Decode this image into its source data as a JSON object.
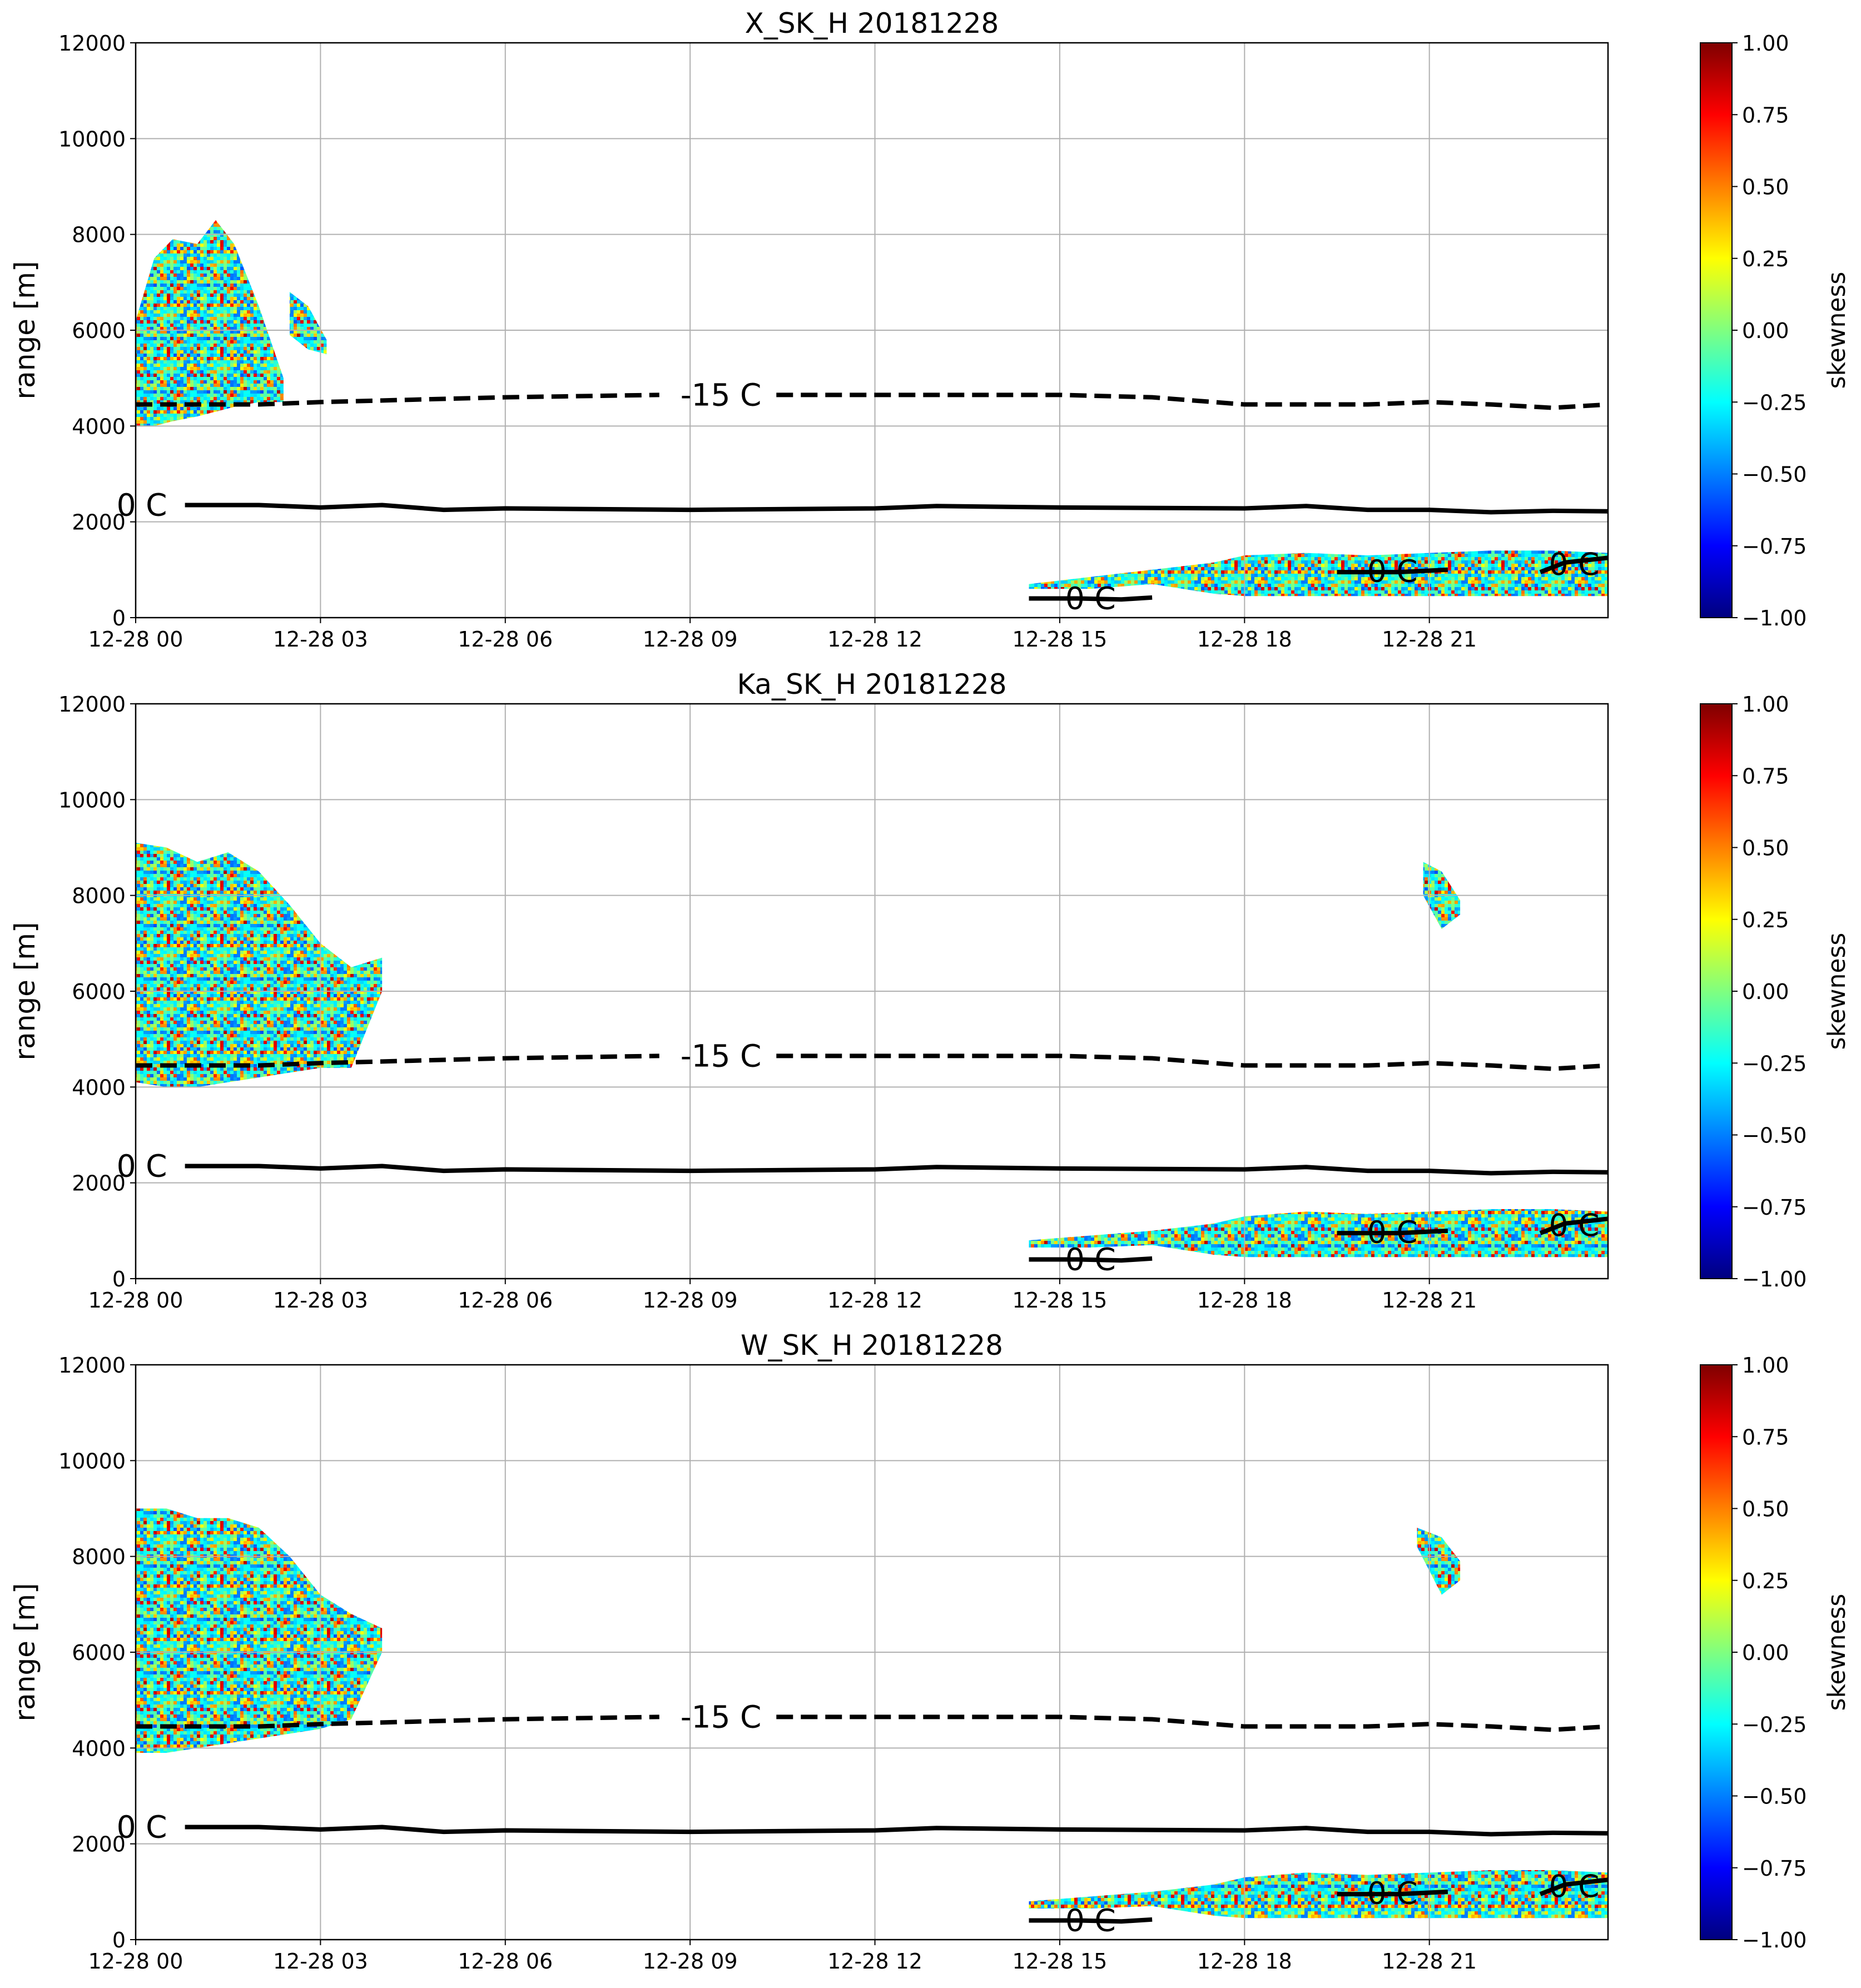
{
  "chart_data": [
    {
      "type": "heatmap",
      "title": "X_SK_H 20181228",
      "ylabel": "range [m]",
      "xlim": [
        0,
        23.9
      ],
      "xticks": [
        {
          "value": 0,
          "label": "12-28 00"
        },
        {
          "value": 3,
          "label": "12-28 03"
        },
        {
          "value": 6,
          "label": "12-28 06"
        },
        {
          "value": 9,
          "label": "12-28 09"
        },
        {
          "value": 12,
          "label": "12-28 12"
        },
        {
          "value": 15,
          "label": "12-28 15"
        },
        {
          "value": 18,
          "label": "12-28 18"
        },
        {
          "value": 21,
          "label": "12-28 21"
        }
      ],
      "ylim": [
        0,
        12000
      ],
      "yticks": [
        0,
        2000,
        4000,
        6000,
        8000,
        10000,
        12000
      ],
      "grid": true,
      "colorbar": {
        "label": "skewness",
        "colormap": "jet",
        "clim": [
          -1,
          1
        ],
        "ticks": [
          {
            "value": 1,
            "label": "1.00"
          },
          {
            "value": 0.75,
            "label": "0.75"
          },
          {
            "value": 0.5,
            "label": "0.50"
          },
          {
            "value": 0.25,
            "label": "0.25"
          },
          {
            "value": 0,
            "label": "0.00"
          },
          {
            "value": -0.25,
            "label": "−0.25"
          },
          {
            "value": -0.5,
            "label": "−0.50"
          },
          {
            "value": -0.75,
            "label": "−0.75"
          },
          {
            "value": -1,
            "label": "−1.00"
          }
        ]
      },
      "echo": [
        {
          "x": [
            0,
            0.3,
            0.6,
            1,
            1.3,
            1.6,
            2,
            2.4
          ],
          "top": [
            6200,
            7500,
            7900,
            7800,
            8300,
            7800,
            6500,
            5000
          ],
          "bottom": [
            4000,
            4000,
            4100,
            4200,
            4300,
            4400,
            4500,
            4500
          ]
        },
        {
          "x": [
            2.5,
            2.8,
            3.1
          ],
          "top": [
            6800,
            6500,
            5800
          ],
          "bottom": [
            5900,
            5600,
            5500
          ]
        },
        {
          "x": [
            14.5,
            15.5,
            16.5,
            17.5,
            18,
            19,
            20,
            21,
            22,
            23,
            23.9
          ],
          "top": [
            700,
            850,
            1000,
            1150,
            1300,
            1350,
            1300,
            1350,
            1400,
            1400,
            1350
          ],
          "bottom": [
            600,
            600,
            700,
            500,
            450,
            450,
            450,
            450,
            450,
            450,
            450
          ]
        }
      ],
      "contours": [
        {
          "label": "-15 C",
          "style": "dashed",
          "x": [
            0,
            2,
            3,
            4.5,
            6,
            8.5,
            9.5,
            10.4,
            12,
            15,
            16.5,
            18,
            20,
            21,
            22,
            23,
            23.9
          ],
          "values": [
            4450,
            4450,
            4500,
            4550,
            4600,
            4650,
            null,
            4650,
            4650,
            4650,
            4600,
            4450,
            4450,
            4500,
            4450,
            4380,
            4450
          ]
        },
        {
          "label": "0 C",
          "style": "solid",
          "x": [
            0.1,
            0.8,
            2,
            3,
            4,
            5,
            6,
            9,
            12,
            13,
            15,
            18,
            19,
            20,
            21,
            22,
            23,
            23.9
          ],
          "values": [
            null,
            2350,
            2350,
            2300,
            2350,
            2250,
            2280,
            2250,
            2280,
            2330,
            2300,
            2280,
            2330,
            2250,
            2250,
            2200,
            2230,
            2220
          ]
        },
        {
          "label": "0 C",
          "style": "solid",
          "x": [
            14.5,
            15.3,
            16,
            16.5
          ],
          "values": [
            400,
            400,
            380,
            420
          ]
        },
        {
          "label": "0 C",
          "style": "solid",
          "x": [
            19.5,
            20.5,
            21.3
          ],
          "values": [
            950,
            950,
            1000
          ]
        },
        {
          "label": "0 C",
          "style": "solid",
          "x": [
            22.8,
            23.2,
            23.9
          ],
          "values": [
            950,
            1150,
            1250
          ]
        }
      ]
    },
    {
      "type": "heatmap",
      "title": "Ka_SK_H 20181228",
      "ylabel": "range [m]",
      "xlim": [
        0,
        23.9
      ],
      "xticks": [
        {
          "value": 0,
          "label": "12-28 00"
        },
        {
          "value": 3,
          "label": "12-28 03"
        },
        {
          "value": 6,
          "label": "12-28 06"
        },
        {
          "value": 9,
          "label": "12-28 09"
        },
        {
          "value": 12,
          "label": "12-28 12"
        },
        {
          "value": 15,
          "label": "12-28 15"
        },
        {
          "value": 18,
          "label": "12-28 18"
        },
        {
          "value": 21,
          "label": "12-28 21"
        }
      ],
      "ylim": [
        0,
        12000
      ],
      "yticks": [
        0,
        2000,
        4000,
        6000,
        8000,
        10000,
        12000
      ],
      "grid": true,
      "colorbar": {
        "label": "skewness",
        "colormap": "jet",
        "clim": [
          -1,
          1
        ],
        "ticks": [
          {
            "value": 1,
            "label": "1.00"
          },
          {
            "value": 0.75,
            "label": "0.75"
          },
          {
            "value": 0.5,
            "label": "0.50"
          },
          {
            "value": 0.25,
            "label": "0.25"
          },
          {
            "value": 0,
            "label": "0.00"
          },
          {
            "value": -0.25,
            "label": "−0.25"
          },
          {
            "value": -0.5,
            "label": "−0.50"
          },
          {
            "value": -0.75,
            "label": "−0.75"
          },
          {
            "value": -1,
            "label": "−1.00"
          }
        ]
      },
      "echo": [
        {
          "x": [
            0,
            0.5,
            1,
            1.5,
            2,
            2.5,
            3,
            3.5,
            4
          ],
          "top": [
            9100,
            9000,
            8700,
            8900,
            8500,
            7800,
            7000,
            6500,
            6700
          ],
          "bottom": [
            4100,
            4000,
            4000,
            4100,
            4200,
            4300,
            4400,
            4400,
            6000
          ]
        },
        {
          "x": [
            20.9,
            21.2,
            21.5
          ],
          "top": [
            8700,
            8500,
            7900
          ],
          "bottom": [
            8000,
            7300,
            7600
          ]
        },
        {
          "x": [
            14.5,
            15.5,
            16.5,
            17.5,
            18,
            19,
            20,
            21,
            22,
            23,
            23.9
          ],
          "top": [
            800,
            900,
            1000,
            1150,
            1300,
            1400,
            1350,
            1400,
            1450,
            1450,
            1400
          ],
          "bottom": [
            650,
            650,
            700,
            500,
            450,
            450,
            450,
            450,
            450,
            450,
            450
          ]
        }
      ],
      "contours": [
        {
          "label": "-15 C",
          "style": "dashed",
          "x": [
            0,
            2,
            3,
            4.5,
            6,
            8.5,
            9.5,
            10.4,
            12,
            15,
            16.5,
            18,
            20,
            21,
            22,
            23,
            23.9
          ],
          "values": [
            4450,
            4450,
            4500,
            4550,
            4600,
            4650,
            null,
            4650,
            4650,
            4650,
            4600,
            4450,
            4450,
            4500,
            4450,
            4380,
            4450
          ]
        },
        {
          "label": "0 C",
          "style": "solid",
          "x": [
            0.1,
            0.8,
            2,
            3,
            4,
            5,
            6,
            9,
            12,
            13,
            15,
            18,
            19,
            20,
            21,
            22,
            23,
            23.9
          ],
          "values": [
            null,
            2350,
            2350,
            2300,
            2350,
            2250,
            2280,
            2250,
            2280,
            2330,
            2300,
            2280,
            2330,
            2250,
            2250,
            2200,
            2230,
            2220
          ]
        },
        {
          "label": "0 C",
          "style": "solid",
          "x": [
            14.5,
            15.3,
            16,
            16.5
          ],
          "values": [
            400,
            400,
            380,
            420
          ]
        },
        {
          "label": "0 C",
          "style": "solid",
          "x": [
            19.5,
            20.5,
            21.3
          ],
          "values": [
            950,
            950,
            1000
          ]
        },
        {
          "label": "0 C",
          "style": "solid",
          "x": [
            22.8,
            23.2,
            23.9
          ],
          "values": [
            950,
            1150,
            1250
          ]
        }
      ]
    },
    {
      "type": "heatmap",
      "title": "W_SK_H 20181228",
      "ylabel": "range [m]",
      "xlim": [
        0,
        23.9
      ],
      "xticks": [
        {
          "value": 0,
          "label": "12-28 00"
        },
        {
          "value": 3,
          "label": "12-28 03"
        },
        {
          "value": 6,
          "label": "12-28 06"
        },
        {
          "value": 9,
          "label": "12-28 09"
        },
        {
          "value": 12,
          "label": "12-28 12"
        },
        {
          "value": 15,
          "label": "12-28 15"
        },
        {
          "value": 18,
          "label": "12-28 18"
        },
        {
          "value": 21,
          "label": "12-28 21"
        }
      ],
      "ylim": [
        0,
        12000
      ],
      "yticks": [
        0,
        2000,
        4000,
        6000,
        8000,
        10000,
        12000
      ],
      "grid": true,
      "colorbar": {
        "label": "skewness",
        "colormap": "jet",
        "clim": [
          -1,
          1
        ],
        "ticks": [
          {
            "value": 1,
            "label": "1.00"
          },
          {
            "value": 0.75,
            "label": "0.75"
          },
          {
            "value": 0.5,
            "label": "0.50"
          },
          {
            "value": 0.25,
            "label": "0.25"
          },
          {
            "value": 0,
            "label": "0.00"
          },
          {
            "value": -0.25,
            "label": "−0.25"
          },
          {
            "value": -0.5,
            "label": "−0.50"
          },
          {
            "value": -0.75,
            "label": "−0.75"
          },
          {
            "value": -1,
            "label": "−1.00"
          }
        ]
      },
      "echo": [
        {
          "x": [
            0,
            0.5,
            1,
            1.5,
            2,
            2.5,
            3,
            3.5,
            4
          ],
          "top": [
            9000,
            9000,
            8800,
            8800,
            8600,
            8000,
            7200,
            6800,
            6500
          ],
          "bottom": [
            3900,
            3900,
            4000,
            4100,
            4200,
            4300,
            4400,
            4600,
            6000
          ]
        },
        {
          "x": [
            20.8,
            21.2,
            21.5
          ],
          "top": [
            8600,
            8400,
            7900
          ],
          "bottom": [
            8200,
            7200,
            7500
          ]
        },
        {
          "x": [
            14.5,
            15.5,
            16.5,
            17.5,
            18,
            19,
            20,
            21,
            22,
            23,
            23.9
          ],
          "top": [
            800,
            900,
            1000,
            1150,
            1300,
            1400,
            1350,
            1400,
            1450,
            1450,
            1400
          ],
          "bottom": [
            650,
            650,
            700,
            500,
            450,
            450,
            450,
            450,
            450,
            450,
            450
          ]
        }
      ],
      "contours": [
        {
          "label": "-15 C",
          "style": "dashed",
          "x": [
            0,
            2,
            3,
            4.5,
            6,
            8.5,
            9.5,
            10.4,
            12,
            15,
            16.5,
            18,
            20,
            21,
            22,
            23,
            23.9
          ],
          "values": [
            4450,
            4450,
            4500,
            4550,
            4600,
            4650,
            null,
            4650,
            4650,
            4650,
            4600,
            4450,
            4450,
            4500,
            4450,
            4380,
            4450
          ]
        },
        {
          "label": "0 C",
          "style": "solid",
          "x": [
            0.1,
            0.8,
            2,
            3,
            4,
            5,
            6,
            9,
            12,
            13,
            15,
            18,
            19,
            20,
            21,
            22,
            23,
            23.9
          ],
          "values": [
            null,
            2350,
            2350,
            2300,
            2350,
            2250,
            2280,
            2250,
            2280,
            2330,
            2300,
            2280,
            2330,
            2250,
            2250,
            2200,
            2230,
            2220
          ]
        },
        {
          "label": "0 C",
          "style": "solid",
          "x": [
            14.5,
            15.3,
            16,
            16.5
          ],
          "values": [
            400,
            400,
            380,
            420
          ]
        },
        {
          "label": "0 C",
          "style": "solid",
          "x": [
            19.5,
            20.5,
            21.3
          ],
          "values": [
            950,
            950,
            1000
          ]
        },
        {
          "label": "0 C",
          "style": "solid",
          "x": [
            22.8,
            23.2,
            23.9
          ],
          "values": [
            950,
            1150,
            1250
          ]
        }
      ]
    }
  ]
}
